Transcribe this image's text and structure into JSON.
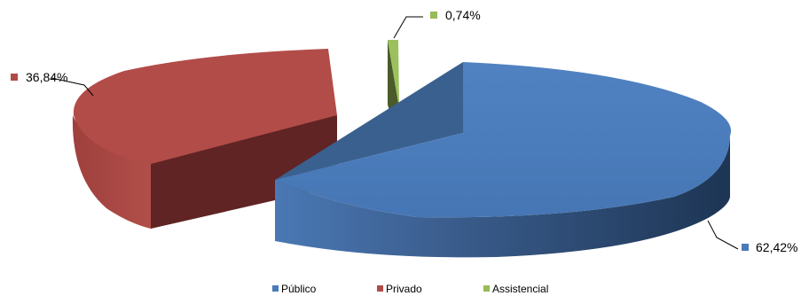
{
  "chart_data": {
    "type": "pie",
    "style": "3d-exploded",
    "categories": [
      "Público",
      "Privado",
      "Assistencial"
    ],
    "values": [
      62.42,
      36.84,
      0.74
    ],
    "data_labels": [
      "62,42%",
      "36,84%",
      "0,74%"
    ],
    "colors": [
      "#4a7ab8",
      "#b04c48",
      "#97bb58"
    ],
    "legend_position": "bottom",
    "title": ""
  }
}
